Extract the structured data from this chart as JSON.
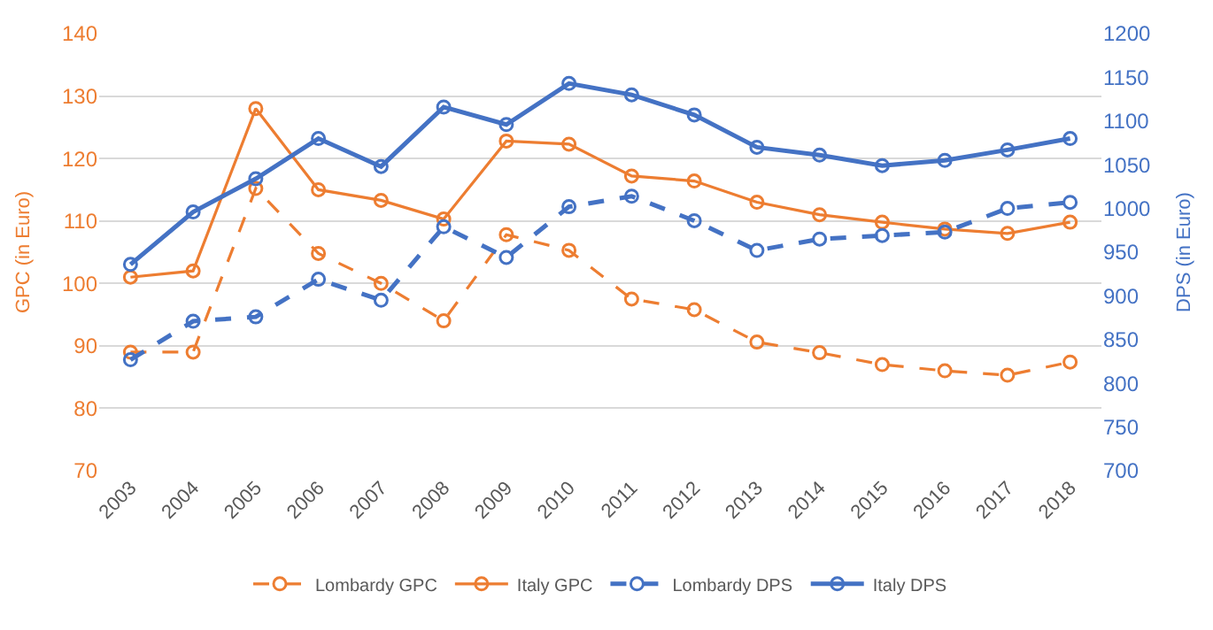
{
  "chart_data": {
    "type": "line",
    "ylabel": "GPC (in Euro)",
    "y2label": "DPS (in Euro)",
    "categories": [
      "2003",
      "2004",
      "2005",
      "2006",
      "2007",
      "2008",
      "2009",
      "2010",
      "2011",
      "2012",
      "2013",
      "2014",
      "2015",
      "2016",
      "2017",
      "2018"
    ],
    "series": [
      {
        "name": "Lombardy GPC",
        "color": "#ed7d31",
        "line_style": "dashed",
        "values": [
          89,
          89,
          115.2,
          104.8,
          100,
          94,
          107.8,
          105.3,
          97.5,
          95.8,
          90.6,
          88.9,
          87,
          86,
          85.3,
          87.4
        ]
      },
      {
        "name": "Italy GPC",
        "color": "#ed7d31",
        "line_style": "solid",
        "values": [
          101,
          102,
          128,
          115,
          113.3,
          110.3,
          122.8,
          122.3,
          117.2,
          116.4,
          113,
          111,
          109.8,
          108.7,
          108,
          109.8
        ]
      },
      {
        "name": "Lombardy DPS",
        "color": "#4472c4",
        "line_style": "dashed",
        "axis": "y2",
        "values": [
          827,
          871,
          876,
          919,
          895,
          979,
          944,
          1002,
          1014,
          986,
          952,
          965,
          969,
          973,
          1000,
          1007
        ]
      },
      {
        "name": "Italy DPS",
        "color": "#4472c4",
        "line_style": "solid",
        "axis": "y2",
        "values": [
          936,
          996,
          1034,
          1080,
          1048,
          1116,
          1096,
          1143,
          1130,
          1107,
          1070,
          1061,
          1049,
          1055,
          1067,
          1080
        ]
      }
    ],
    "marker": "circle",
    "grid": "y",
    "legend": "bottom",
    "ylim": [
      70,
      140
    ],
    "yticks": [
      70,
      80,
      90,
      100,
      110,
      120,
      130,
      140
    ],
    "y2lim": [
      700,
      1200
    ],
    "y2ticks": [
      700,
      750,
      800,
      850,
      900,
      950,
      1000,
      1050,
      1100,
      1150,
      1200
    ]
  }
}
